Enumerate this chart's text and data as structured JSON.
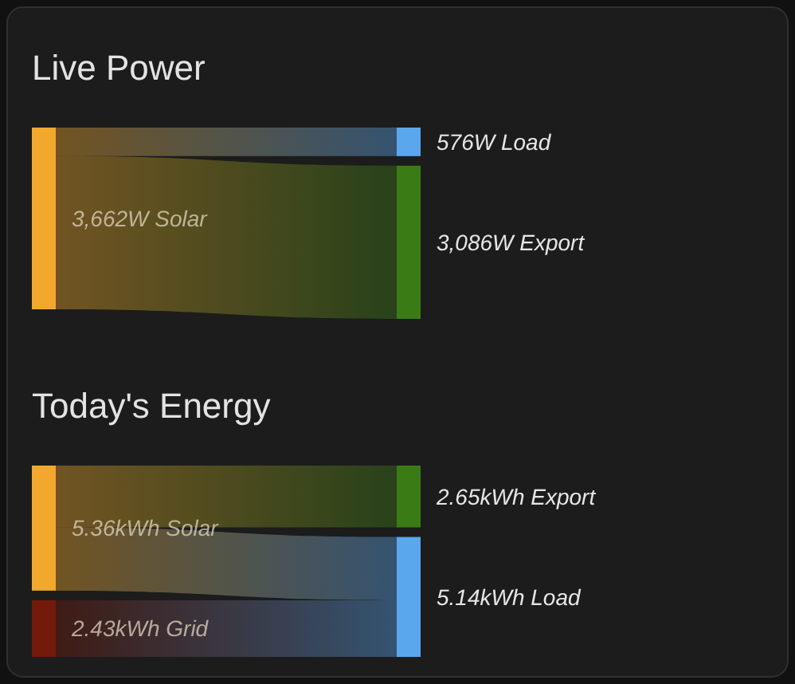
{
  "chart_data": [
    {
      "type": "other",
      "title": "Live Power",
      "categories": [
        "Solar",
        "Load",
        "Export"
      ],
      "values": [
        3662,
        576,
        3086
      ],
      "value_labels": [
        "3,662W",
        "576W",
        "3,086W"
      ],
      "colors": [
        "#f2a82c",
        "#5aa7ee",
        "#3a7b16"
      ]
    },
    {
      "type": "other",
      "title": "Today's Energy",
      "categories": [
        "Solar",
        "Grid",
        "Export",
        "Load"
      ],
      "values": [
        5.36,
        2.43,
        2.65,
        5.14
      ],
      "value_labels": [
        "5.36kWh",
        "2.43kWh",
        "2.65kWh",
        "5.14kWh"
      ],
      "colors": [
        "#f2a82c",
        "#731a0b",
        "#3a7b16",
        "#5aa7ee"
      ]
    }
  ]
}
